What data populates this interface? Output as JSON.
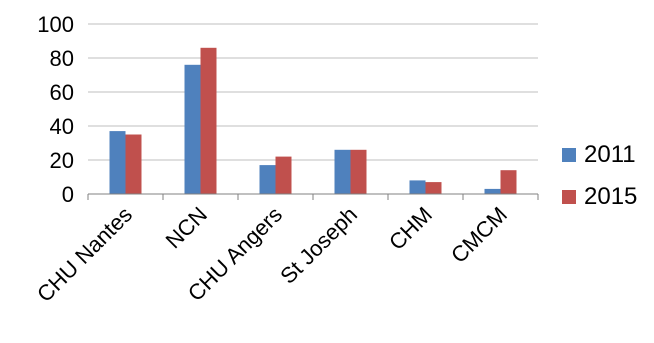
{
  "chart_data": {
    "type": "bar",
    "categories": [
      "CHU Nantes",
      "NCN",
      "CHU Angers",
      "St Joseph",
      "CHM",
      "CMCM"
    ],
    "series": [
      {
        "name": "2011",
        "values": [
          37,
          76,
          17,
          26,
          8,
          3
        ],
        "color": "#4f81bd"
      },
      {
        "name": "2015",
        "values": [
          35,
          86,
          22,
          26,
          7,
          14
        ],
        "color": "#c0504d"
      }
    ],
    "ylim": [
      0,
      100
    ],
    "yticks": [
      "0",
      "20",
      "40",
      "60",
      "80",
      "100"
    ],
    "grid": true,
    "legend_position": "right",
    "title": "",
    "xlabel": "",
    "ylabel": ""
  }
}
